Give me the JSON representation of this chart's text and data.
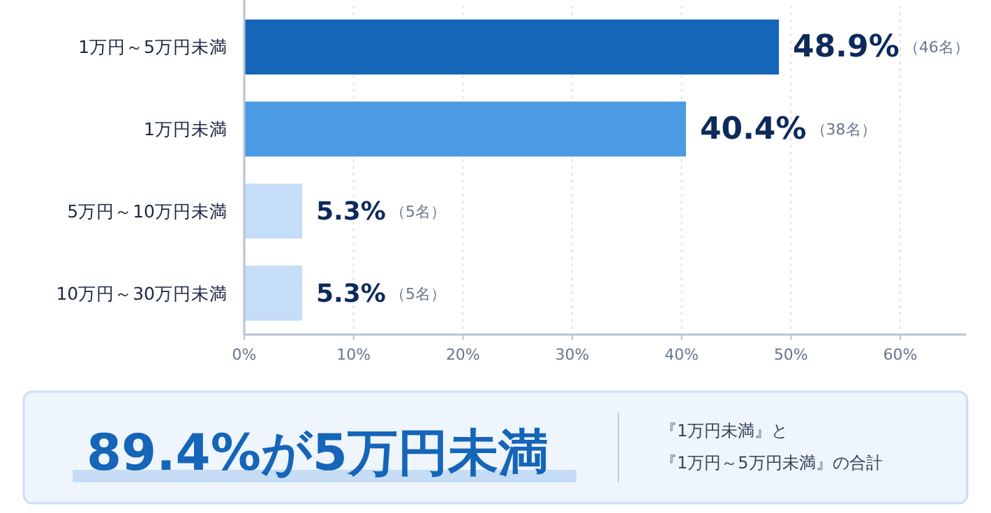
{
  "chart_data": {
    "type": "bar",
    "orientation": "horizontal",
    "categories": [
      "1万円～5万円未満",
      "1万円未満",
      "5万円～10万円未満",
      "10万円～30万円未満"
    ],
    "values": [
      48.9,
      40.4,
      5.3,
      5.3
    ],
    "colors": [
      "#1565b8",
      "#4a9be3",
      "#c5ddf6",
      "#c5ddf6"
    ],
    "value_labels": [
      "48.9%",
      "40.4%",
      "5.3%",
      "5.3%"
    ],
    "xlim": [
      0,
      66
    ],
    "xticks": [
      {
        "value": 0,
        "label": "0%"
      },
      {
        "value": 10,
        "label": "10%"
      },
      {
        "value": 20,
        "label": "20%"
      },
      {
        "value": 30,
        "label": "30%"
      },
      {
        "value": 40,
        "label": "40%"
      },
      {
        "value": 50,
        "label": "50%"
      },
      {
        "value": 60,
        "label": "60%"
      }
    ],
    "grid": "x",
    "annotations": [
      "（46名）",
      "（38名）",
      "（5名）",
      "（5名）",
      "89.4%が5万円未満",
      "『1万円未満』と",
      "『1万円～5万円未満』の合計"
    ]
  }
}
